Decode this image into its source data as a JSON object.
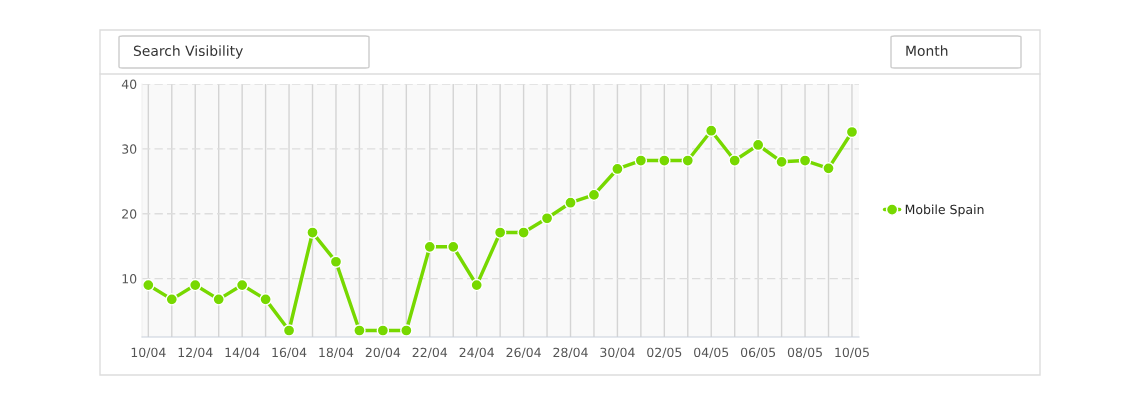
{
  "chart_data": {
    "type": "line",
    "categories": [
      "10/04",
      null,
      "12/04",
      null,
      "14/04",
      null,
      "16/04",
      null,
      "18/04",
      null,
      "20/04",
      null,
      "22/04",
      null,
      "24/04",
      null,
      "26/04",
      null,
      "28/04",
      null,
      "30/04",
      null,
      "02/05",
      null,
      "04/05",
      null,
      "06/05",
      null,
      "08/05",
      null,
      "10/05"
    ],
    "series": [
      {
        "name": "Mobile Spain",
        "color": "#77d800",
        "values": [
          9,
          6.8,
          9,
          6.8,
          9,
          6.8,
          2,
          17.1,
          12.6,
          2,
          2,
          2,
          14.9,
          14.9,
          9,
          17.1,
          17.1,
          19.3,
          21.7,
          22.9,
          26.9,
          28.2,
          28.2,
          28.2,
          32.8,
          28.2,
          30.6,
          28,
          28.2,
          27,
          32.6
        ]
      }
    ],
    "ylim": [
      1,
      40
    ],
    "yticks": [
      10,
      20,
      30,
      40
    ],
    "annotations": [
      "Search Visibility",
      "Month"
    ],
    "grid": true,
    "legend": "right",
    "marker": "circle",
    "line_style": "solid"
  }
}
